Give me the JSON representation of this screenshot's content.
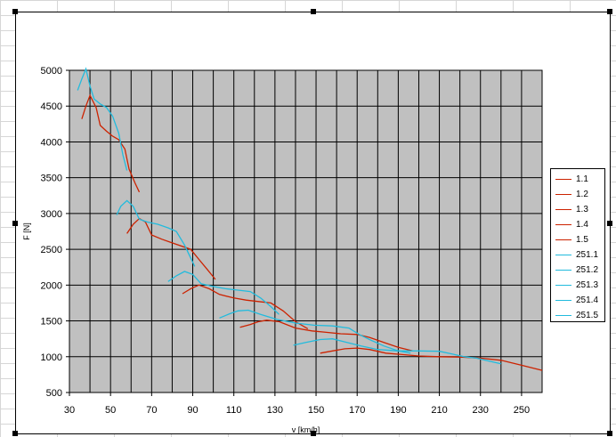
{
  "chart_data": {
    "type": "line",
    "title": "",
    "xlabel": "v [km/h]",
    "ylabel": "F [N]",
    "xlim": [
      30,
      260
    ],
    "ylim": [
      500,
      5000
    ],
    "x_ticks": [
      "30",
      "50",
      "70",
      "90",
      "110",
      "130",
      "150",
      "170",
      "190",
      "210",
      "230",
      "250"
    ],
    "y_ticks": [
      "500",
      "1000",
      "1500",
      "2000",
      "2500",
      "3000",
      "3500",
      "4000",
      "4500",
      "5000"
    ],
    "grid": true,
    "legend_position": "right",
    "colors": {
      "plot_bg": "#c0c0c0",
      "grid": "#000000",
      "red": "#cc2200",
      "cyan": "#22bbdd"
    },
    "series": [
      {
        "name": "1.1",
        "color": "#cc2200",
        "points": [
          [
            36,
            4320
          ],
          [
            38,
            4500
          ],
          [
            40,
            4650
          ],
          [
            43,
            4480
          ],
          [
            45,
            4230
          ],
          [
            48,
            4150
          ],
          [
            51,
            4080
          ],
          [
            54,
            4030
          ],
          [
            57,
            3900
          ],
          [
            59,
            3620
          ],
          [
            62,
            3420
          ],
          [
            64,
            3300
          ]
        ]
      },
      {
        "name": "1.2",
        "color": "#cc2200",
        "points": [
          [
            58,
            2720
          ],
          [
            61,
            2850
          ],
          [
            64,
            2930
          ],
          [
            67,
            2880
          ],
          [
            70,
            2700
          ],
          [
            75,
            2640
          ],
          [
            80,
            2590
          ],
          [
            85,
            2540
          ],
          [
            89,
            2500
          ],
          [
            93,
            2360
          ],
          [
            97,
            2220
          ],
          [
            101,
            2080
          ]
        ]
      },
      {
        "name": "1.3",
        "color": "#cc2200",
        "points": [
          [
            85,
            1880
          ],
          [
            89,
            1950
          ],
          [
            93,
            2000
          ],
          [
            98,
            1950
          ],
          [
            103,
            1870
          ],
          [
            110,
            1820
          ],
          [
            116,
            1790
          ],
          [
            122,
            1770
          ],
          [
            128,
            1750
          ],
          [
            134,
            1640
          ],
          [
            140,
            1490
          ],
          [
            146,
            1390
          ]
        ]
      },
      {
        "name": "1.4",
        "color": "#cc2200",
        "points": [
          [
            113,
            1410
          ],
          [
            118,
            1450
          ],
          [
            122,
            1490
          ],
          [
            126,
            1510
          ],
          [
            132,
            1490
          ],
          [
            140,
            1400
          ],
          [
            148,
            1360
          ],
          [
            155,
            1340
          ],
          [
            162,
            1320
          ],
          [
            170,
            1310
          ],
          [
            176,
            1270
          ],
          [
            183,
            1200
          ],
          [
            190,
            1130
          ],
          [
            197,
            1080
          ]
        ]
      },
      {
        "name": "1.5",
        "color": "#cc2200",
        "points": [
          [
            152,
            1050
          ],
          [
            158,
            1080
          ],
          [
            164,
            1110
          ],
          [
            170,
            1120
          ],
          [
            176,
            1100
          ],
          [
            184,
            1050
          ],
          [
            192,
            1030
          ],
          [
            200,
            1010
          ],
          [
            210,
            1000
          ],
          [
            220,
            995
          ],
          [
            230,
            980
          ],
          [
            240,
            950
          ],
          [
            250,
            880
          ],
          [
            260,
            810
          ]
        ]
      },
      {
        "name": "251.1",
        "color": "#22bbdd",
        "points": [
          [
            34,
            4720
          ],
          [
            36,
            4880
          ],
          [
            38,
            5020
          ],
          [
            40,
            4780
          ],
          [
            42,
            4600
          ],
          [
            45,
            4530
          ],
          [
            48,
            4480
          ],
          [
            51,
            4360
          ],
          [
            54,
            4120
          ],
          [
            56,
            3820
          ],
          [
            58,
            3600
          ]
        ]
      },
      {
        "name": "251.2",
        "color": "#22bbdd",
        "points": [
          [
            53,
            2980
          ],
          [
            55,
            3100
          ],
          [
            58,
            3180
          ],
          [
            61,
            3100
          ],
          [
            64,
            2920
          ],
          [
            68,
            2880
          ],
          [
            73,
            2850
          ],
          [
            78,
            2800
          ],
          [
            82,
            2750
          ],
          [
            86,
            2560
          ],
          [
            89,
            2380
          ],
          [
            91,
            2260
          ]
        ]
      },
      {
        "name": "251.3",
        "color": "#22bbdd",
        "points": [
          [
            78,
            2050
          ],
          [
            82,
            2130
          ],
          [
            86,
            2190
          ],
          [
            90,
            2150
          ],
          [
            94,
            2020
          ],
          [
            100,
            1980
          ],
          [
            106,
            1950
          ],
          [
            112,
            1930
          ],
          [
            118,
            1910
          ],
          [
            123,
            1820
          ],
          [
            128,
            1700
          ],
          [
            132,
            1590
          ]
        ]
      },
      {
        "name": "251.4",
        "color": "#22bbdd",
        "points": [
          [
            103,
            1540
          ],
          [
            108,
            1600
          ],
          [
            112,
            1640
          ],
          [
            117,
            1650
          ],
          [
            123,
            1590
          ],
          [
            131,
            1520
          ],
          [
            140,
            1470
          ],
          [
            149,
            1440
          ],
          [
            158,
            1430
          ],
          [
            166,
            1400
          ],
          [
            171,
            1310
          ],
          [
            176,
            1240
          ],
          [
            183,
            1150
          ],
          [
            190,
            1080
          ],
          [
            196,
            1050
          ]
        ]
      },
      {
        "name": "251.5",
        "color": "#22bbdd",
        "points": [
          [
            139,
            1160
          ],
          [
            145,
            1200
          ],
          [
            152,
            1240
          ],
          [
            158,
            1250
          ],
          [
            165,
            1200
          ],
          [
            172,
            1150
          ],
          [
            180,
            1100
          ],
          [
            190,
            1080
          ],
          [
            200,
            1080
          ],
          [
            210,
            1075
          ],
          [
            216,
            1040
          ],
          [
            222,
            1000
          ],
          [
            228,
            980
          ],
          [
            234,
            940
          ],
          [
            240,
            900
          ]
        ]
      }
    ]
  }
}
